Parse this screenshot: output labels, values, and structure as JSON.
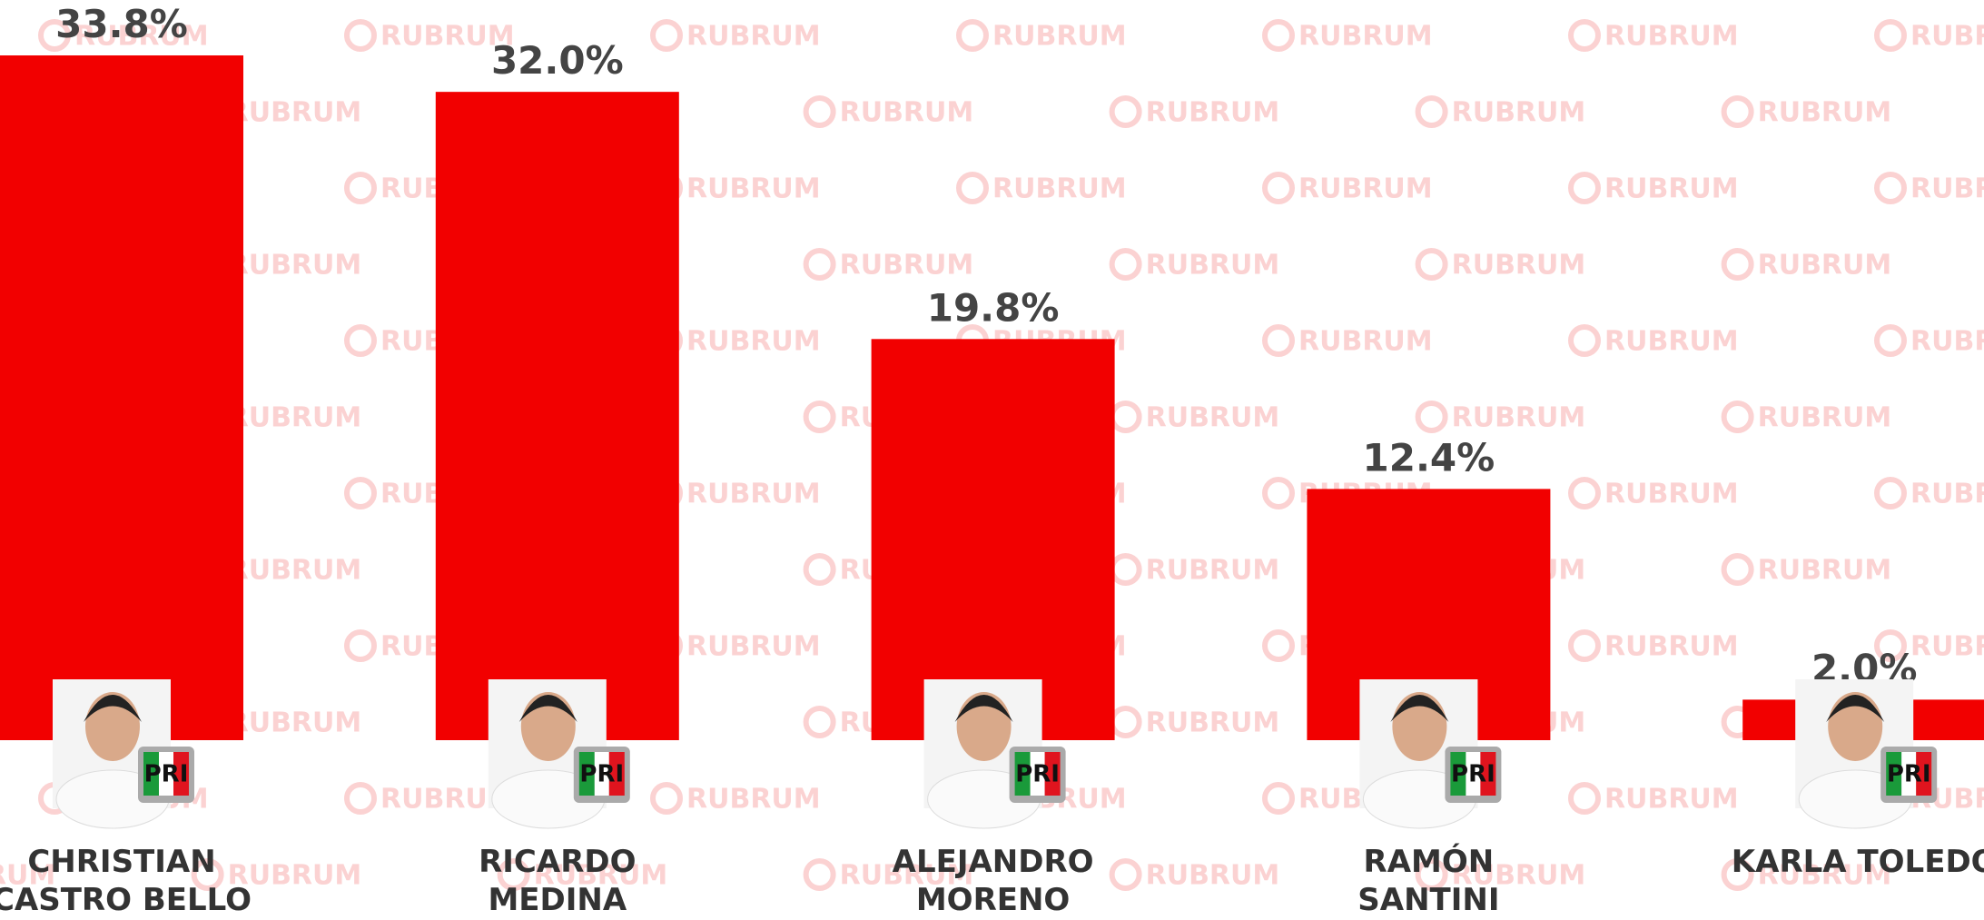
{
  "chart_data": {
    "type": "bar",
    "categories": [
      "CHRISTIAN CASTRO BELLO",
      "RICARDO MEDINA",
      "ALEJANDRO MORENO",
      "RAMÓN SANTINI",
      "KARLA TOLEDO"
    ],
    "values": [
      33.8,
      32.0,
      19.8,
      12.4,
      2.0
    ],
    "value_labels": [
      "33.8%",
      "32.0%",
      "19.8%",
      "12.4%",
      "2.0%"
    ],
    "color": "#f20000",
    "ylim": [
      0,
      33.8
    ],
    "party_logo": "PRI",
    "watermark": "RUBRUM"
  }
}
